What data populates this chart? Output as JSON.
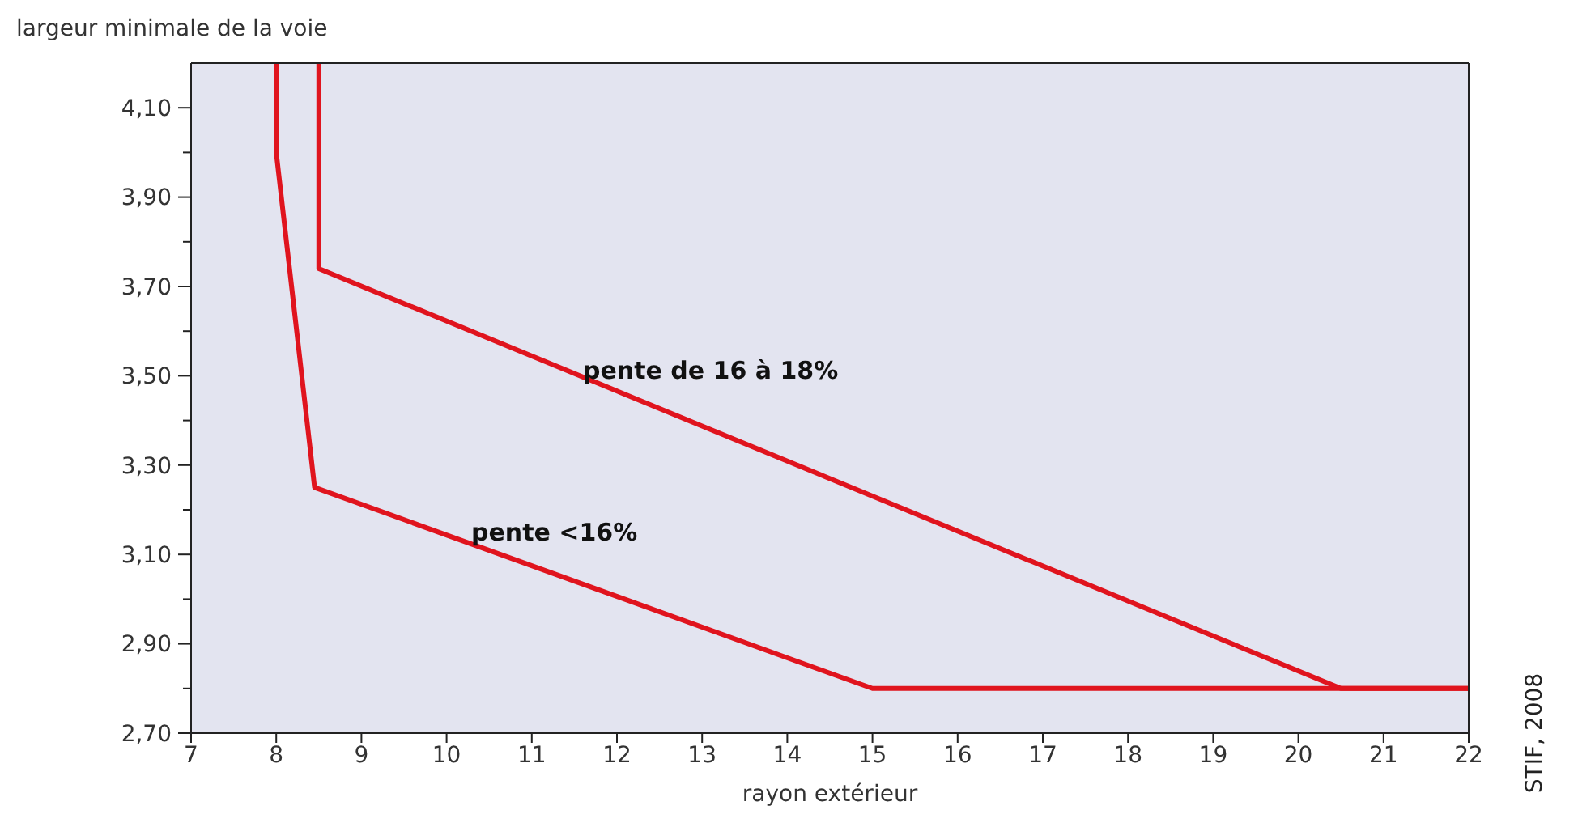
{
  "chart_data": {
    "type": "line",
    "xlabel": "rayon extérieur",
    "ylabel": "largeur minimale de la voie",
    "xlim": [
      7,
      22
    ],
    "xticks": [
      7,
      8,
      9,
      10,
      11,
      12,
      13,
      14,
      15,
      16,
      17,
      18,
      19,
      20,
      21,
      22
    ],
    "ylim": [
      2.7,
      4.2
    ],
    "yticks": [
      {
        "value": 2.7,
        "label": "2,70"
      },
      {
        "value": 2.8,
        "label": null
      },
      {
        "value": 2.9,
        "label": "2,90"
      },
      {
        "value": 3.0,
        "label": null
      },
      {
        "value": 3.1,
        "label": "3,10"
      },
      {
        "value": 3.2,
        "label": null
      },
      {
        "value": 3.3,
        "label": "3,30"
      },
      {
        "value": 3.4,
        "label": null
      },
      {
        "value": 3.5,
        "label": "3,50"
      },
      {
        "value": 3.6,
        "label": null
      },
      {
        "value": 3.7,
        "label": "3,70"
      },
      {
        "value": 3.8,
        "label": null
      },
      {
        "value": 3.9,
        "label": "3,90"
      },
      {
        "value": 4.0,
        "label": null
      },
      {
        "value": 4.1,
        "label": "4,10"
      }
    ],
    "series": [
      {
        "color": "#e0141e",
        "x": [
          8,
          8,
          8.45,
          15,
          22
        ],
        "values": [
          4.2,
          4.0,
          3.25,
          2.8,
          2.8
        ]
      },
      {
        "color": "#e0141e",
        "x": [
          8.5,
          8.5,
          20.5,
          22
        ],
        "values": [
          4.2,
          3.74,
          2.8,
          2.8
        ]
      }
    ],
    "annotations": [
      "pente de 16 à 18%",
      "pente <16%",
      "STIF, 2008"
    ],
    "marker": "none",
    "line_style": "solid",
    "grid": false
  }
}
